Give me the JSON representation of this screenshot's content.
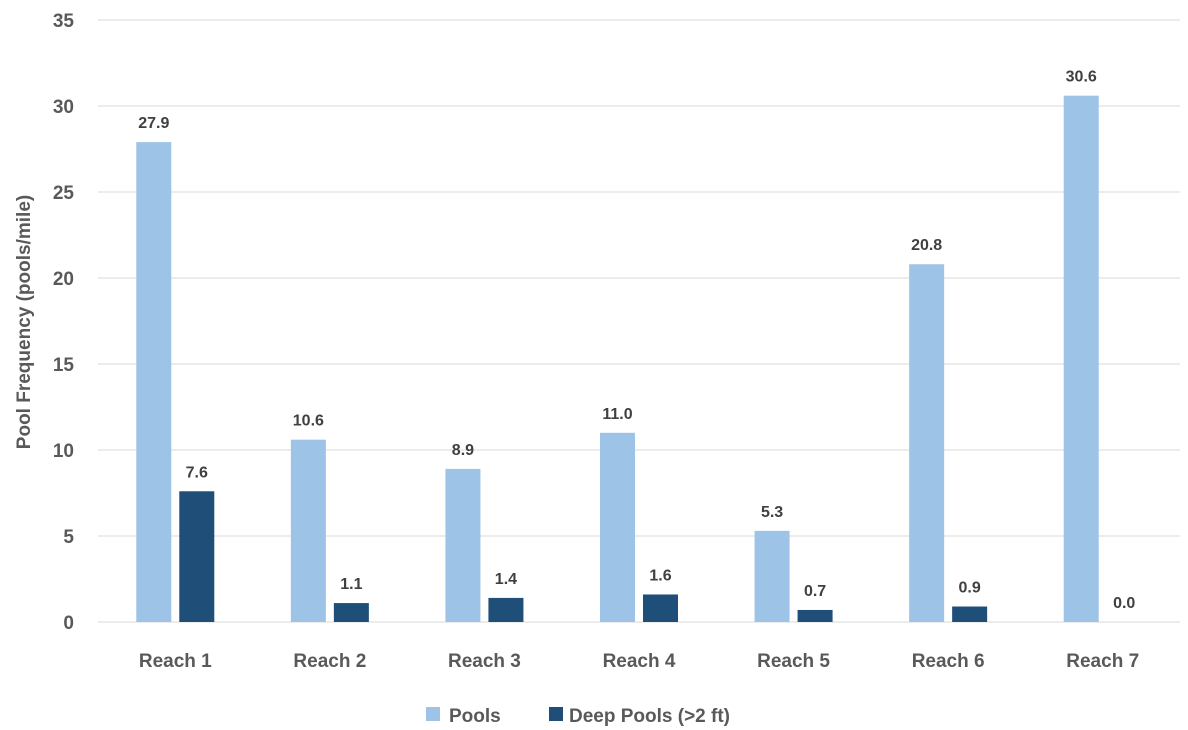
{
  "chart_data": {
    "type": "bar",
    "categories": [
      "Reach 1",
      "Reach 2",
      "Reach 3",
      "Reach 4",
      "Reach 5",
      "Reach 6",
      "Reach 7"
    ],
    "series": [
      {
        "name": "Pools",
        "values": [
          27.9,
          10.6,
          8.9,
          11.0,
          5.3,
          20.8,
          30.6
        ],
        "labels": [
          "27.9",
          "10.6",
          "8.9",
          "11.0",
          "5.3",
          "20.8",
          "30.6"
        ],
        "color": "#9dc3e6"
      },
      {
        "name": "Deep Pools (>2 ft)",
        "values": [
          7.6,
          1.1,
          1.4,
          1.6,
          0.7,
          0.9,
          0.0
        ],
        "labels": [
          "7.6",
          "1.1",
          "1.4",
          "1.6",
          "0.7",
          "0.9",
          "0.0"
        ],
        "color": "#1f4e79"
      }
    ],
    "title": "",
    "xlabel": "",
    "ylabel": "Pool Frequency (pools/mile)",
    "ylim": [
      0,
      35
    ],
    "yticks": [
      0,
      5,
      10,
      15,
      20,
      25,
      30,
      35
    ],
    "grid": true,
    "legend": "bottom-center"
  }
}
